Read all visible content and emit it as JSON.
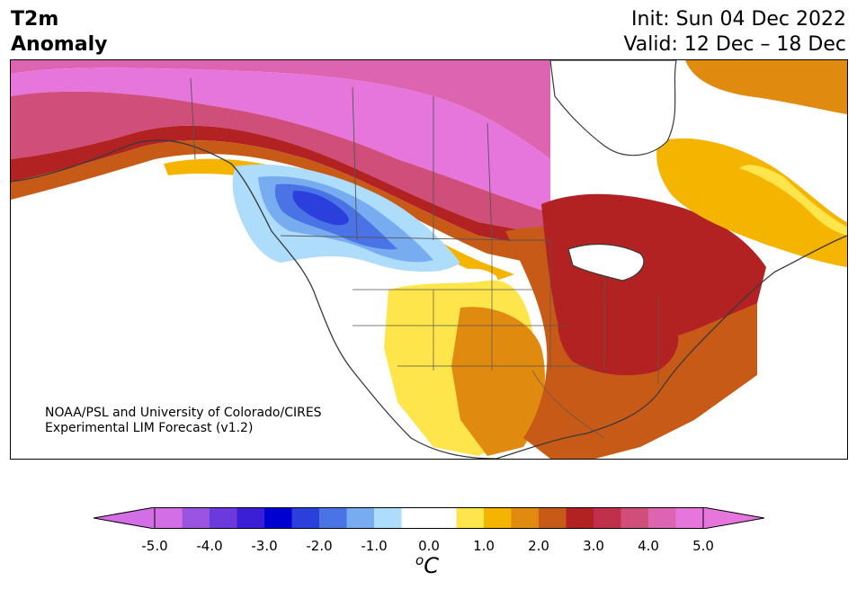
{
  "title": {
    "variable": "T2m\nAnomaly",
    "init": "Init: Sun 04 Dec 2022",
    "valid": "Valid: 12 Dec – 18 Dec"
  },
  "credit": {
    "line1": "NOAA/PSL and University of Colorado/CIRES",
    "line2": "Experimental LIM Forecast (v1.2)"
  },
  "colorbar": {
    "unit_base": "C",
    "unit_sup": "o",
    "tick_labels": [
      "-5.0",
      "-4.0",
      "-3.0",
      "-2.0",
      "-1.0",
      "0.0",
      "1.0",
      "2.0",
      "3.0",
      "4.0",
      "5.0"
    ],
    "colors": [
      "#d36fe6",
      "#9b54e0",
      "#6b3adc",
      "#3a1fd6",
      "#0000d0",
      "#2a3fdc",
      "#4a73e6",
      "#78acf1",
      "#aedcfb",
      "#ffffff",
      "#ffffff",
      "#fde54b",
      "#f4b400",
      "#e08a10",
      "#c85a18",
      "#b22222",
      "#c0304a",
      "#cf4e7a",
      "#dd64b0",
      "#e676dc"
    ],
    "extend_low": "#d36fe6",
    "extend_high": "#e676dc"
  }
}
